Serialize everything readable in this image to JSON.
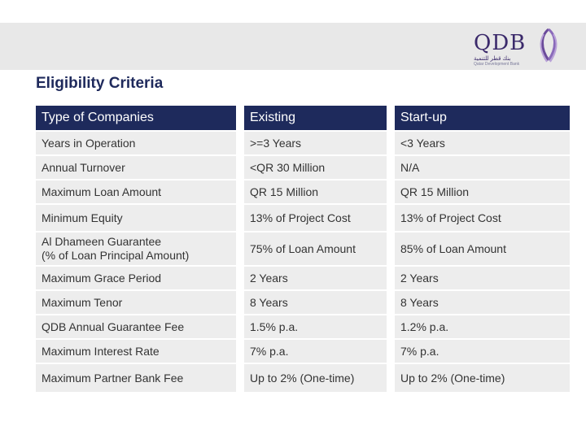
{
  "logo": {
    "name": "QDB",
    "arabic": "بنك قطر للتنمية",
    "english": "Qatar Development Bank"
  },
  "title": "Eligibility Criteria",
  "table": {
    "headers": [
      "Type of Companies",
      "Existing",
      "Start-up"
    ],
    "rows": [
      [
        "Years in Operation",
        ">=3 Years",
        "<3 Years"
      ],
      [
        "Annual Turnover",
        "<QR 30 Million",
        "N/A"
      ],
      [
        "Maximum Loan Amount",
        "QR 15 Million",
        "QR 15 Million"
      ],
      [
        "Minimum Equity",
        "13% of Project Cost",
        "13% of Project Cost"
      ],
      [
        "Al Dhameen Guarantee",
        "75% of Loan Amount",
        "85% of Loan Amount"
      ],
      [
        "Maximum Grace Period",
        "2 Years",
        "2 Years"
      ],
      [
        "Maximum Tenor",
        "8 Years",
        "8 Years"
      ],
      [
        "QDB Annual Guarantee Fee",
        "1.5% p.a.",
        "1.2% p.a."
      ],
      [
        "Maximum Interest Rate",
        "7% p.a.",
        "7% p.a."
      ],
      [
        "Maximum Partner Bank Fee",
        "Up to 2% (One-time)",
        "Up to 2% (One-time)"
      ]
    ],
    "row4_subline": "(% of Loan Principal Amount)"
  },
  "colors": {
    "header_bg": "#1e2a5c",
    "cell_bg": "#ededed",
    "title": "#1f2a5c",
    "logo": "#3b2a6b"
  }
}
